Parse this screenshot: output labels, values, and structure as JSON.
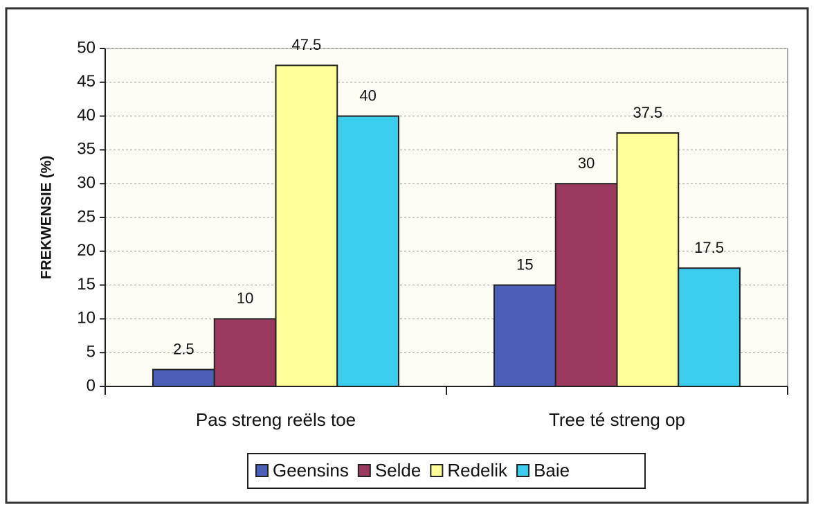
{
  "chart_data": {
    "type": "bar",
    "y_label": "FREKWENSIE (%)",
    "categories": [
      "Pas streng reëls toe",
      "Tree té streng op"
    ],
    "series": [
      {
        "name": "Geensins",
        "color": "#4a5fb5",
        "values": [
          2.5,
          15
        ]
      },
      {
        "name": "Selde",
        "color": "#9b3a5e",
        "values": [
          10,
          30
        ]
      },
      {
        "name": "Redelik",
        "color": "#ffff99",
        "values": [
          47.5,
          37.5
        ]
      },
      {
        "name": "Baie",
        "color": "#3ccdee",
        "values": [
          40,
          17.5
        ]
      }
    ],
    "ylim": [
      0,
      50
    ],
    "yticks": [
      0,
      5,
      10,
      15,
      20,
      25,
      30,
      35,
      40,
      45,
      50
    ],
    "grid": true,
    "legend": "bottom"
  }
}
